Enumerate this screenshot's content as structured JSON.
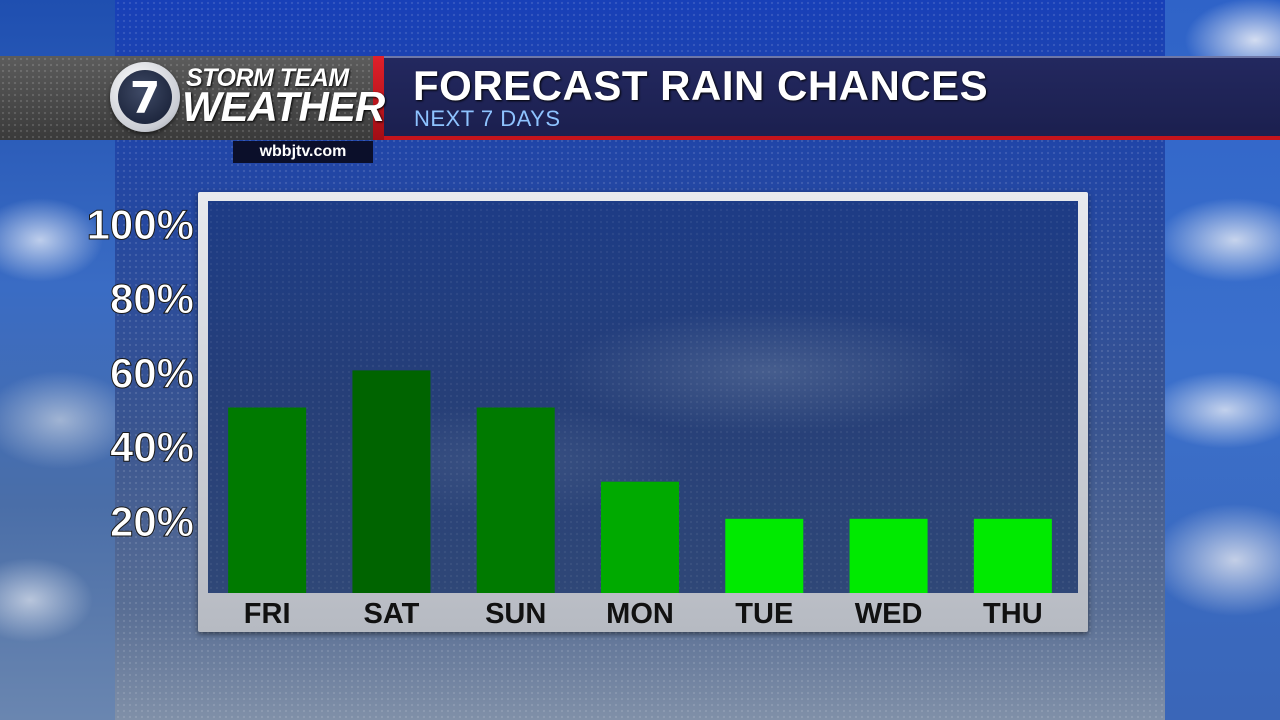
{
  "header": {
    "logo_line1": "STORM TEAM",
    "logo_line2": "WEATHER",
    "logo_number": "7",
    "website": "wbbjtv.com",
    "title": "FORECAST RAIN CHANCES",
    "subtitle": "NEXT 7 DAYS"
  },
  "colors": {
    "header_bg": "#1b1f4e",
    "accent_red": "#c4141c",
    "subtitle": "#8ec3ff"
  },
  "chart_data": {
    "type": "bar",
    "title": "FORECAST RAIN CHANCES",
    "subtitle": "NEXT 7 DAYS",
    "categories": [
      "FRI",
      "SAT",
      "SUN",
      "MON",
      "TUE",
      "WED",
      "THU"
    ],
    "values": [
      50,
      60,
      50,
      30,
      20,
      20,
      20
    ],
    "bar_colors": [
      "#007a00",
      "#006400",
      "#007a00",
      "#00aa00",
      "#00ea00",
      "#00ea00",
      "#00ea00"
    ],
    "yticks": [
      "100%",
      "80%",
      "60%",
      "40%",
      "20%"
    ],
    "ytick_values": [
      100,
      80,
      60,
      40,
      20
    ],
    "ylim": [
      0,
      100
    ],
    "xlabel": "",
    "ylabel": "",
    "grid": false,
    "legend": "none"
  }
}
